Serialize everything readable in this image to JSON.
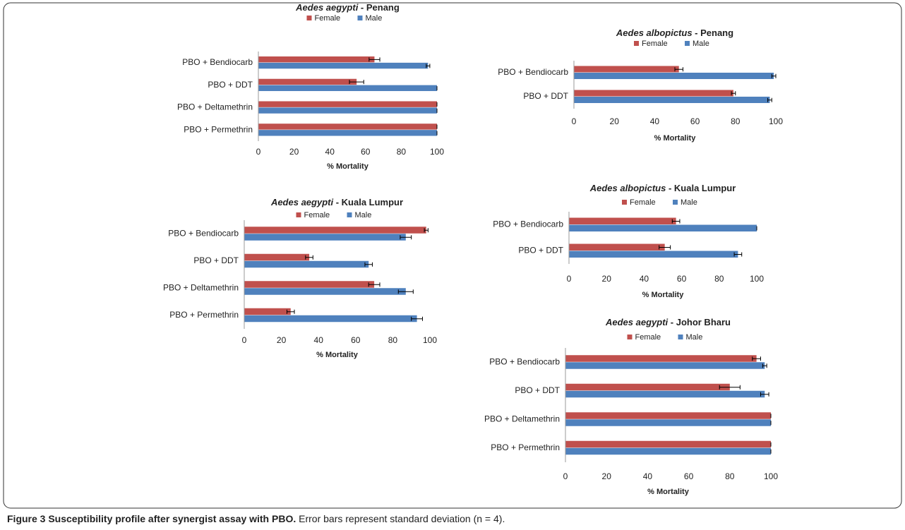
{
  "chart_data": [
    {
      "type": "bar",
      "orientation": "horizontal",
      "title": [
        "Aedes aegypti",
        " - Penang"
      ],
      "categories": [
        "PBO + Bendiocarb",
        "PBO + DDT",
        "PBO + Deltamethrin",
        "PBO + Permethrin"
      ],
      "series": [
        {
          "name": "Female",
          "color": "#c0504d",
          "values": [
            65,
            55,
            100,
            100
          ],
          "errors": [
            3,
            4,
            0,
            0
          ]
        },
        {
          "name": "Male",
          "color": "#4f81bd",
          "values": [
            95,
            100,
            100,
            100
          ],
          "errors": [
            1,
            0,
            0,
            0
          ]
        }
      ],
      "xlim": [
        0,
        100
      ],
      "xticks": [
        0,
        20,
        40,
        60,
        80,
        100
      ],
      "xlabel": "% Mortality"
    },
    {
      "type": "bar",
      "orientation": "horizontal",
      "title": [
        "Aedes albopictus",
        " - Penang"
      ],
      "categories": [
        "PBO + Bendiocarb",
        "PBO + DDT"
      ],
      "series": [
        {
          "name": "Female",
          "color": "#c0504d",
          "values": [
            52,
            79
          ],
          "errors": [
            2,
            1
          ]
        },
        {
          "name": "Male",
          "color": "#4f81bd",
          "values": [
            99,
            97
          ],
          "errors": [
            1,
            1
          ]
        }
      ],
      "xlim": [
        0,
        100
      ],
      "xticks": [
        0,
        20,
        40,
        60,
        80,
        100
      ],
      "xlabel": "% Mortality"
    },
    {
      "type": "bar",
      "orientation": "horizontal",
      "title": [
        "Aedes  aegypti",
        " - Kuala Lumpur"
      ],
      "categories": [
        "PBO + Bendiocarb",
        "PBO + DDT",
        "PBO + Deltamethrin",
        "PBO + Permethrin"
      ],
      "series": [
        {
          "name": "Female",
          "color": "#c0504d",
          "values": [
            98,
            35,
            70,
            25
          ],
          "errors": [
            1,
            2,
            3,
            2
          ]
        },
        {
          "name": "Male",
          "color": "#4f81bd",
          "values": [
            87,
            67,
            87,
            93
          ],
          "errors": [
            3,
            2,
            4,
            3
          ]
        }
      ],
      "xlim": [
        0,
        100
      ],
      "xticks": [
        0,
        20,
        40,
        60,
        80,
        100
      ],
      "xlabel": "% Mortality"
    },
    {
      "type": "bar",
      "orientation": "horizontal",
      "title": [
        "Aedes albopictus",
        " - Kuala Lumpur"
      ],
      "categories": [
        "PBO + Bendiocarb",
        "PBO + DDT"
      ],
      "series": [
        {
          "name": "Female",
          "color": "#c0504d",
          "values": [
            57,
            51
          ],
          "errors": [
            2,
            3
          ]
        },
        {
          "name": "Male",
          "color": "#4f81bd",
          "values": [
            100,
            90
          ],
          "errors": [
            0,
            2
          ]
        }
      ],
      "xlim": [
        0,
        100
      ],
      "xticks": [
        0,
        20,
        40,
        60,
        80,
        100
      ],
      "xlabel": "% Mortality"
    },
    {
      "type": "bar",
      "orientation": "horizontal",
      "title": [
        "Aedes aegypti",
        " - Johor Bharu"
      ],
      "categories": [
        "PBO + Bendiocarb",
        "PBO + DDT",
        "PBO + Deltamethrin",
        "PBO + Permethrin"
      ],
      "series": [
        {
          "name": "Female",
          "color": "#c0504d",
          "values": [
            93,
            80,
            100,
            100
          ],
          "errors": [
            2,
            5,
            0,
            0
          ]
        },
        {
          "name": "Male",
          "color": "#4f81bd",
          "values": [
            97,
            97,
            100,
            100
          ],
          "errors": [
            1,
            2,
            0,
            0
          ]
        }
      ],
      "xlim": [
        0,
        100
      ],
      "xticks": [
        0,
        20,
        40,
        60,
        80,
        100
      ],
      "xlabel": "% Mortality"
    }
  ],
  "caption": {
    "label": "Figure 3 Susceptibility profile after synergist assay with PBO.",
    "text": "Error bars represent standard deviation (n = 4)."
  }
}
